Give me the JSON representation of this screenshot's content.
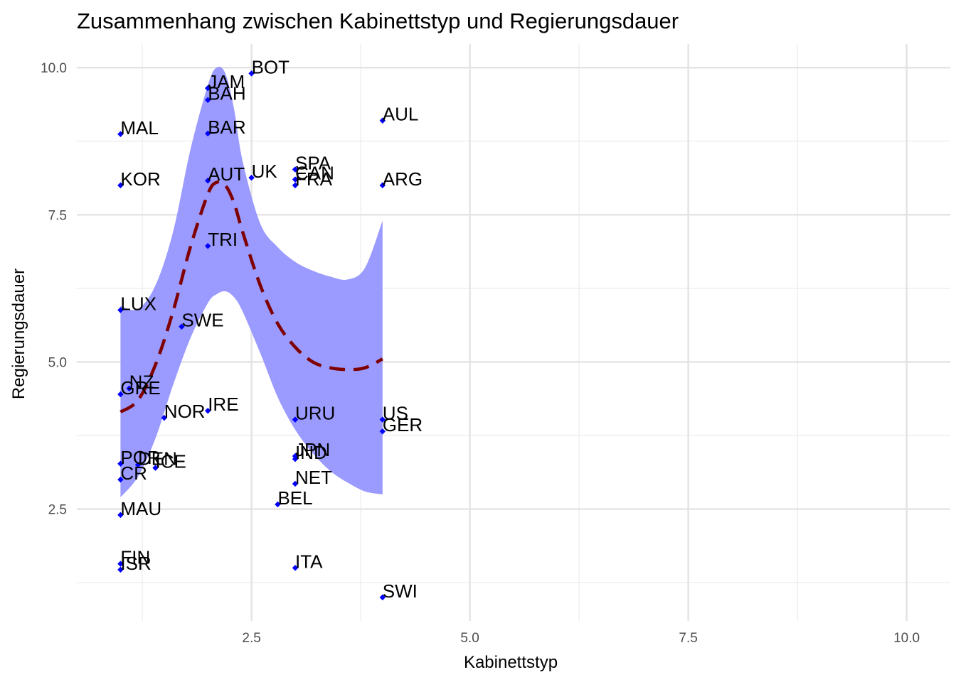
{
  "chart_data": {
    "type": "scatter",
    "title": "Zusammenhang zwischen Kabinettstyp und Regierungsdauer",
    "xlabel": "Kabinettstyp",
    "ylabel": "Regierungsdauer",
    "xlim": [
      0.5,
      10.5
    ],
    "ylim": [
      0.6,
      10.4
    ],
    "x_ticks": [
      2.5,
      5.0,
      7.5,
      10.0
    ],
    "x_tick_labels": [
      "2.5",
      "5.0",
      "7.5",
      "10.0"
    ],
    "y_ticks": [
      2.5,
      5.0,
      7.5,
      10.0
    ],
    "y_tick_labels": [
      "2.5",
      "5.0",
      "7.5",
      "10.0"
    ],
    "grid": true,
    "colors": {
      "points": "#0000ff",
      "band": "#9a9aff",
      "smooth_line": "#7f0000"
    },
    "points": [
      {
        "label": "BOT",
        "x": 2.5,
        "y": 9.9
      },
      {
        "label": "JAM",
        "x": 2.0,
        "y": 9.65
      },
      {
        "label": "BAH",
        "x": 2.0,
        "y": 9.45
      },
      {
        "label": "BAR",
        "x": 2.0,
        "y": 8.88
      },
      {
        "label": "AUT",
        "x": 2.0,
        "y": 8.08
      },
      {
        "label": "UK",
        "x": 2.5,
        "y": 8.13
      },
      {
        "label": "TRI",
        "x": 2.0,
        "y": 6.97
      },
      {
        "label": "MAL",
        "x": 1.0,
        "y": 8.87
      },
      {
        "label": "KOR",
        "x": 1.0,
        "y": 8.0
      },
      {
        "label": "AUL",
        "x": 4.0,
        "y": 9.1
      },
      {
        "label": "SPA",
        "x": 3.0,
        "y": 8.27
      },
      {
        "label": "CAN",
        "x": 3.0,
        "y": 8.1
      },
      {
        "label": "FRA",
        "x": 3.0,
        "y": 8.0
      },
      {
        "label": "ARG",
        "x": 4.0,
        "y": 8.0
      },
      {
        "label": "LUX",
        "x": 1.0,
        "y": 5.88
      },
      {
        "label": "SWE",
        "x": 1.7,
        "y": 5.6
      },
      {
        "label": "NZ",
        "x": 1.1,
        "y": 4.55
      },
      {
        "label": "GRE",
        "x": 1.0,
        "y": 4.45
      },
      {
        "label": "NOR",
        "x": 1.5,
        "y": 4.05
      },
      {
        "label": "IRE",
        "x": 2.0,
        "y": 4.17
      },
      {
        "label": "URU",
        "x": 3.0,
        "y": 4.02
      },
      {
        "label": "US",
        "x": 4.0,
        "y": 4.02
      },
      {
        "label": "GER",
        "x": 4.0,
        "y": 3.82
      },
      {
        "label": "POR",
        "x": 1.0,
        "y": 3.27
      },
      {
        "label": "DEN",
        "x": 1.2,
        "y": 3.25
      },
      {
        "label": "ICE",
        "x": 1.4,
        "y": 3.2
      },
      {
        "label": "CR",
        "x": 1.0,
        "y": 3.0
      },
      {
        "label": "JPN",
        "x": 3.0,
        "y": 3.4
      },
      {
        "label": "IND",
        "x": 3.0,
        "y": 3.35
      },
      {
        "label": "NET",
        "x": 3.0,
        "y": 2.93
      },
      {
        "label": "BEL",
        "x": 2.8,
        "y": 2.58
      },
      {
        "label": "MAU",
        "x": 1.0,
        "y": 2.4
      },
      {
        "label": "FIN",
        "x": 1.0,
        "y": 1.57
      },
      {
        "label": "ISR",
        "x": 1.0,
        "y": 1.47
      },
      {
        "label": "ITA",
        "x": 3.0,
        "y": 1.5
      },
      {
        "label": "SWI",
        "x": 4.0,
        "y": 1.0
      }
    ],
    "smooth": {
      "x": [
        1.0,
        1.2,
        1.4,
        1.6,
        1.8,
        2.0,
        2.1,
        2.2,
        2.3,
        2.4,
        2.6,
        2.8,
        3.0,
        3.2,
        3.4,
        3.6,
        3.8,
        4.0
      ],
      "y": [
        4.15,
        4.35,
        4.95,
        5.85,
        6.95,
        7.85,
        8.05,
        8.0,
        7.7,
        7.2,
        6.3,
        5.65,
        5.25,
        5.0,
        4.9,
        4.87,
        4.9,
        5.05
      ],
      "upper": [
        5.95,
        5.9,
        6.3,
        7.2,
        8.6,
        9.7,
        10.0,
        9.9,
        9.3,
        8.4,
        7.35,
        6.95,
        6.7,
        6.55,
        6.45,
        6.4,
        6.6,
        7.4
      ],
      "lower": [
        2.7,
        3.05,
        3.7,
        4.6,
        5.4,
        6.0,
        6.15,
        6.2,
        6.1,
        5.85,
        5.15,
        4.4,
        3.85,
        3.45,
        3.15,
        2.95,
        2.8,
        2.75
      ]
    }
  }
}
